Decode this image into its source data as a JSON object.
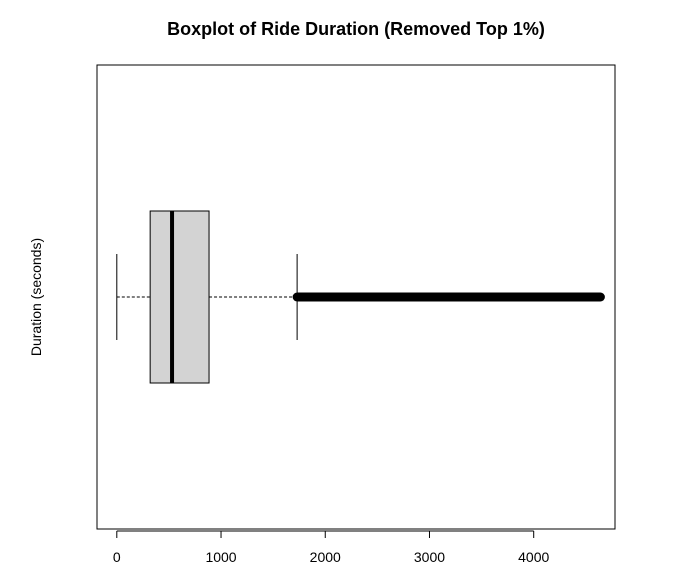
{
  "chart_data": {
    "type": "boxplot",
    "orientation": "horizontal",
    "title": "Boxplot of Ride Duration (Removed Top 1%)",
    "ylabel": "Duration (seconds)",
    "xlabel": "",
    "xlim": [
      -190,
      4780
    ],
    "x_ticks": [
      0,
      1000,
      2000,
      3000,
      4000
    ],
    "x_tick_labels": [
      "0",
      "1000",
      "2000",
      "3000",
      "4000"
    ],
    "grid": false,
    "stats": {
      "whisker_low": 0,
      "q1": 320,
      "median": 530,
      "q3": 885,
      "whisker_high": 1730
    },
    "outliers": {
      "from": 1730,
      "to": 4640
    },
    "colors": {
      "box_fill": "#d3d3d3",
      "line": "#000000"
    }
  }
}
